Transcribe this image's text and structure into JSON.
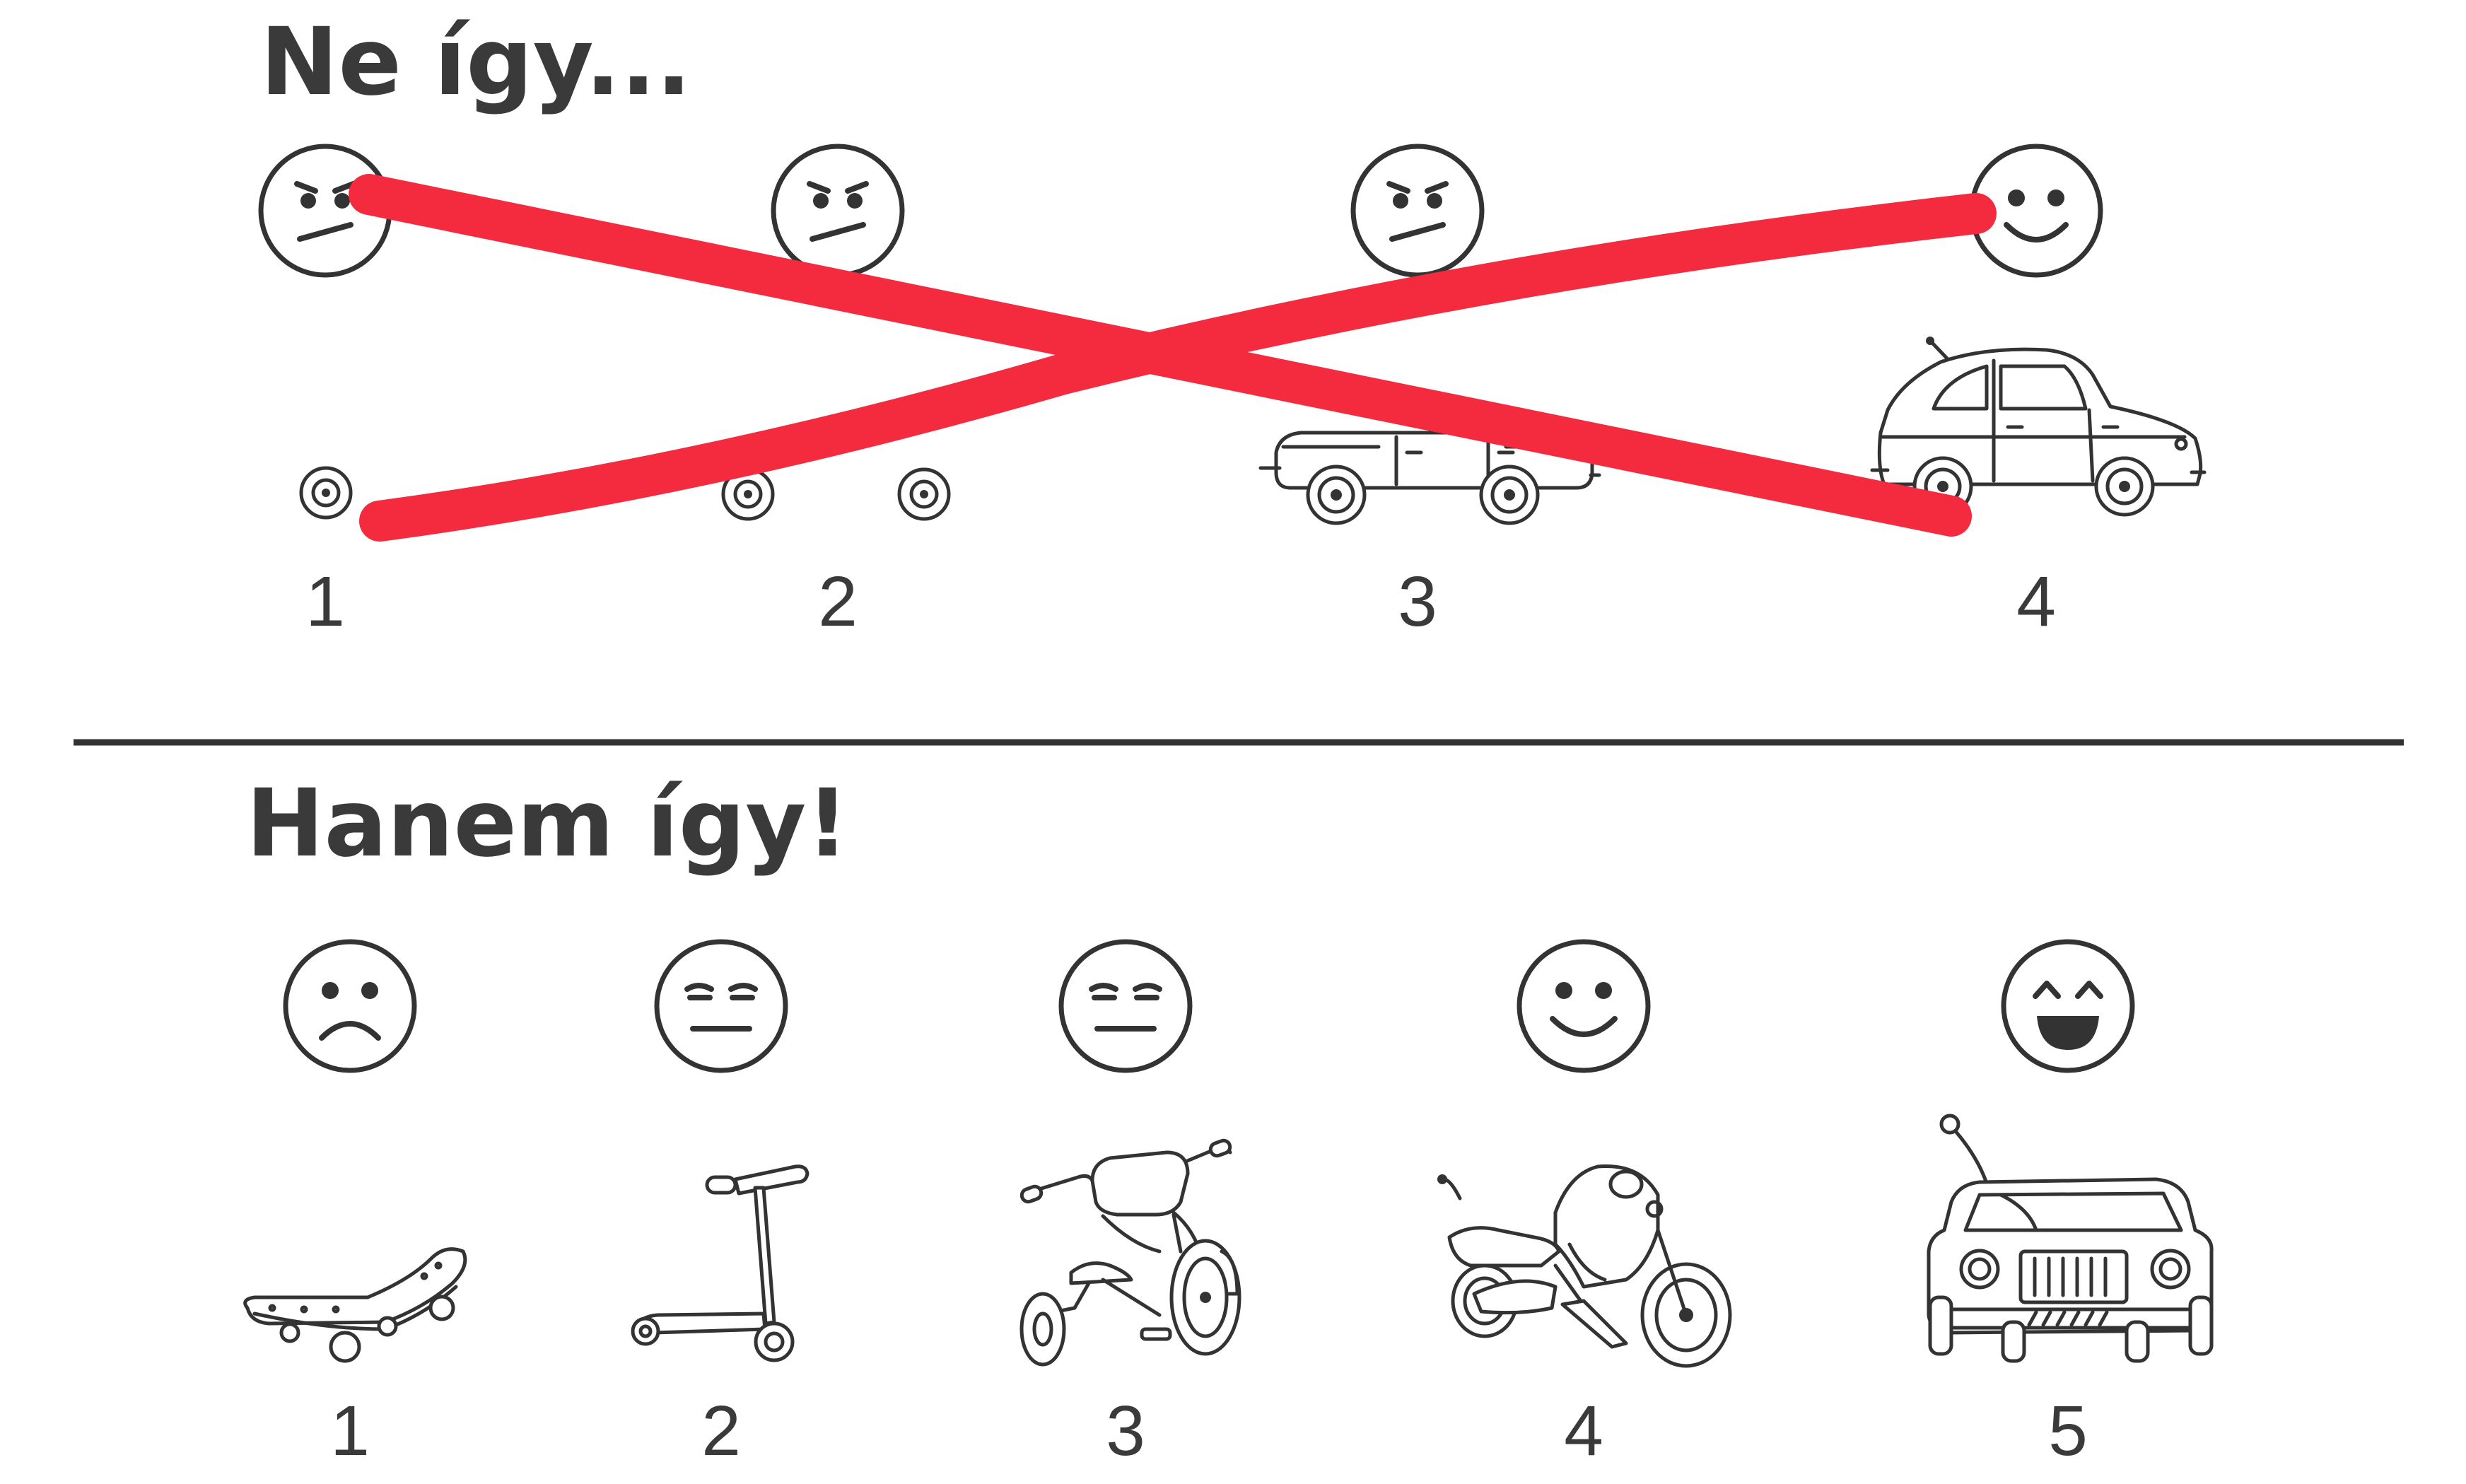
{
  "top": {
    "title": "Ne így...",
    "numbers": [
      "1",
      "2",
      "3",
      "4"
    ],
    "faces": [
      "angry-face",
      "angry-face",
      "angry-face",
      "smiling-face"
    ],
    "vehicles": [
      "wheel",
      "two-wheels",
      "car",
      "car"
    ],
    "cross_color": "#f42a3e"
  },
  "bottom": {
    "title": "Hanem így!",
    "numbers": [
      "1",
      "2",
      "3",
      "4",
      "5"
    ],
    "faces": [
      "sad-face",
      "neutral-face",
      "neutral-face",
      "smiling-face",
      "laughing-face"
    ],
    "vehicles": [
      "skateboard",
      "scooter",
      "tricycle",
      "motorcycle",
      "jeep"
    ]
  },
  "divider_color": "#333333"
}
